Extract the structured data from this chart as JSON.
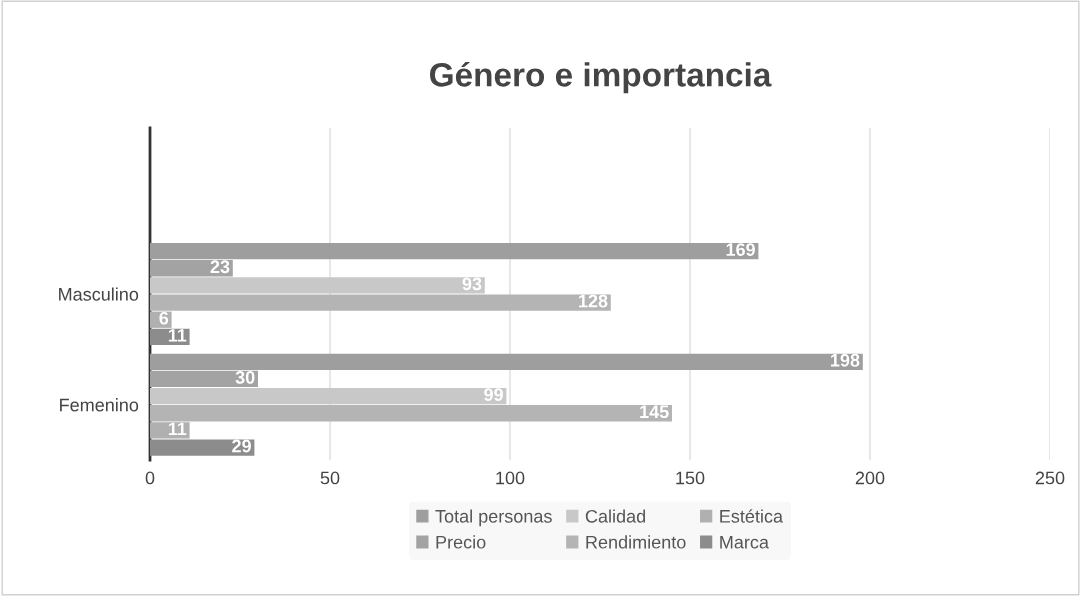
{
  "chart_data": {
    "type": "bar",
    "orientation": "horizontal",
    "title": "Género e importancia",
    "categories": [
      null,
      "Masculino",
      "Femenino"
    ],
    "series": [
      {
        "name": "Total personas",
        "color": "#9e9e9e",
        "values": [
          null,
          169,
          198
        ]
      },
      {
        "name": "Precio",
        "color": "#a3a3a3",
        "values": [
          null,
          23,
          30
        ]
      },
      {
        "name": "Calidad",
        "color": "#c8c8c8",
        "values": [
          null,
          93,
          99
        ]
      },
      {
        "name": "Rendimiento",
        "color": "#b4b4b4",
        "values": [
          null,
          128,
          145
        ]
      },
      {
        "name": "Estética",
        "color": "#b0b0b0",
        "values": [
          null,
          6,
          11
        ]
      },
      {
        "name": "Marca",
        "color": "#8c8c8c",
        "values": [
          null,
          11,
          29
        ]
      }
    ],
    "xlim": [
      0,
      250
    ],
    "xticks": [
      0,
      50,
      100,
      150,
      200,
      250
    ],
    "grid": "x",
    "legend": "bottom",
    "data_labels": true
  }
}
